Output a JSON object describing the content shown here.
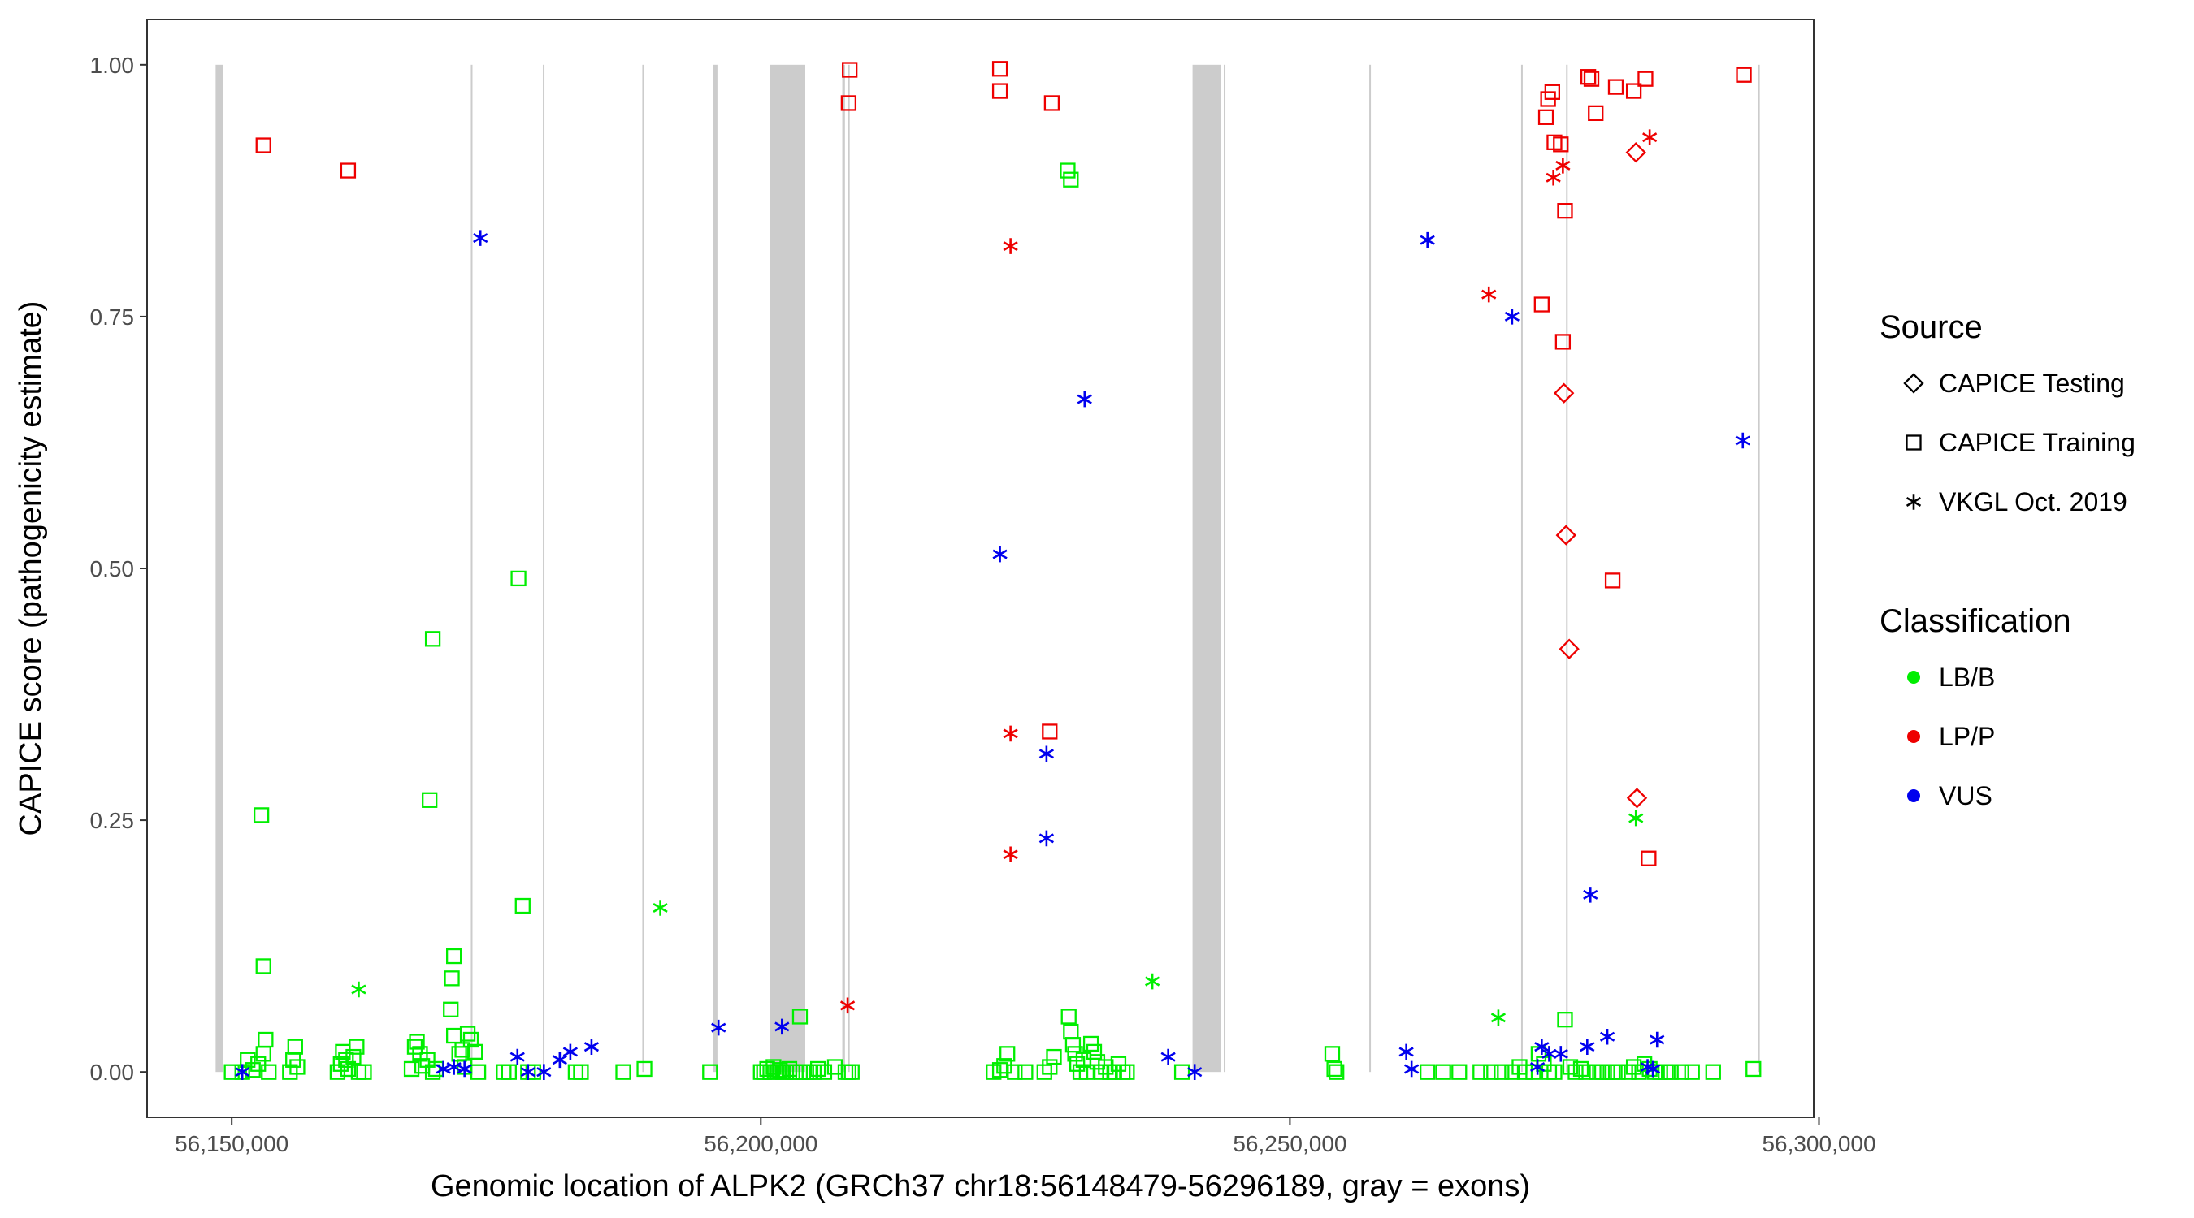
{
  "chart_data": {
    "type": "scatter",
    "title": "",
    "xlabel": "Genomic location of ALPK2 (GRCh37 chr18:56148479-56296189, gray = exons)",
    "ylabel": "CAPICE score (pathogenicity estimate)",
    "xlim": [
      56142000,
      56299500
    ],
    "ylim": [
      -0.045,
      1.045
    ],
    "x_ticks": [
      56150000,
      56200000,
      56250000,
      56300000
    ],
    "x_tick_labels": [
      "56,150,000",
      "56,200,000",
      "56,250,000",
      "56,300,000"
    ],
    "y_ticks": [
      0,
      0.25,
      0.5,
      0.75,
      1
    ],
    "y_tick_labels": [
      "0.00",
      "0.25",
      "0.50",
      "0.75",
      "1.00"
    ],
    "panel_background": "#ffffff",
    "panel_border": "#333333",
    "grid": false,
    "exons": [
      [
        56148479,
        56149150
      ],
      [
        56172600,
        56172700
      ],
      [
        56179400,
        56179550
      ],
      [
        56188800,
        56188950
      ],
      [
        56195450,
        56195900
      ],
      [
        56200900,
        56204200
      ],
      [
        56207700,
        56207950
      ],
      [
        56208200,
        56208400
      ],
      [
        56240800,
        56243500
      ],
      [
        56243750,
        56243900
      ],
      [
        56257500,
        56257650
      ],
      [
        56271850,
        56271950
      ],
      [
        56276100,
        56276250
      ],
      [
        56294250,
        56294400
      ]
    ],
    "exon_color": "#cccccc",
    "legend": {
      "source_title": "Source",
      "source_entries": [
        {
          "label": "CAPICE Testing",
          "shape": "diamond"
        },
        {
          "label": "CAPICE Training",
          "shape": "square"
        },
        {
          "label": "VKGL Oct. 2019",
          "shape": "asterisk"
        }
      ],
      "class_title": "Classification",
      "class_entries": [
        {
          "label": "LB/B",
          "color": "#00ee00"
        },
        {
          "label": "LP/P",
          "color": "#ee0000"
        },
        {
          "label": "VUS",
          "color": "#0000ee"
        }
      ]
    },
    "series": [
      {
        "source": "CAPICE Training",
        "classification": "LB/B",
        "shape": "square",
        "color": "#00ee00",
        "points": [
          [
            56150000,
            0
          ],
          [
            56151000,
            0
          ],
          [
            56151500,
            0.012
          ],
          [
            56152000,
            0.002
          ],
          [
            56152500,
            0.008
          ],
          [
            56153000,
            0.018
          ],
          [
            56153200,
            0.032
          ],
          [
            56153500,
            0
          ],
          [
            56152800,
            0.255
          ],
          [
            56153000,
            0.105
          ],
          [
            56155500,
            0
          ],
          [
            56155800,
            0.012
          ],
          [
            56156000,
            0.025
          ],
          [
            56156200,
            0.005
          ],
          [
            56160000,
            0
          ],
          [
            56160300,
            0.008
          ],
          [
            56160500,
            0.02
          ],
          [
            56160800,
            0.012
          ],
          [
            56161000,
            0.003
          ],
          [
            56161500,
            0.015
          ],
          [
            56162000,
            0
          ],
          [
            56161800,
            0.025
          ],
          [
            56162500,
            0
          ],
          [
            56167000,
            0.003
          ],
          [
            56167300,
            0.025
          ],
          [
            56167500,
            0.03
          ],
          [
            56167800,
            0.018
          ],
          [
            56168000,
            0.006
          ],
          [
            56168500,
            0.012
          ],
          [
            56169000,
            0
          ],
          [
            56169300,
            0.003
          ],
          [
            56168700,
            0.27
          ],
          [
            56169000,
            0.43
          ],
          [
            56171000,
            0.115
          ],
          [
            56170800,
            0.093
          ],
          [
            56170700,
            0.062
          ],
          [
            56171000,
            0.036
          ],
          [
            56171500,
            0.018
          ],
          [
            56171800,
            0.022
          ],
          [
            56172000,
            0.005
          ],
          [
            56172300,
            0.038
          ],
          [
            56172600,
            0.032
          ],
          [
            56173000,
            0.02
          ],
          [
            56173300,
            0
          ],
          [
            56175700,
            0
          ],
          [
            56176200,
            0
          ],
          [
            56177100,
            0.49
          ],
          [
            56177500,
            0.165
          ],
          [
            56178000,
            0
          ],
          [
            56178500,
            0
          ],
          [
            56182500,
            0
          ],
          [
            56183000,
            0
          ],
          [
            56187000,
            0
          ],
          [
            56189000,
            0.003
          ],
          [
            56195200,
            0
          ],
          [
            56200000,
            0
          ],
          [
            56200300,
            0
          ],
          [
            56200600,
            0.003
          ],
          [
            56200900,
            0
          ],
          [
            56201200,
            0.005
          ],
          [
            56201500,
            0
          ],
          [
            56201800,
            0.002
          ],
          [
            56202100,
            0
          ],
          [
            56202400,
            0
          ],
          [
            56202700,
            0.003
          ],
          [
            56203000,
            0
          ],
          [
            56203300,
            0
          ],
          [
            56203700,
            0.055
          ],
          [
            56204000,
            0
          ],
          [
            56204300,
            0
          ],
          [
            56204600,
            0
          ],
          [
            56205000,
            0
          ],
          [
            56205400,
            0.003
          ],
          [
            56206000,
            0
          ],
          [
            56207000,
            0.005
          ],
          [
            56208000,
            0
          ],
          [
            56208300,
            0
          ],
          [
            56208600,
            0
          ],
          [
            56222000,
            0
          ],
          [
            56222600,
            0.002
          ],
          [
            56223000,
            0.006
          ],
          [
            56223300,
            0.018
          ],
          [
            56224000,
            0
          ],
          [
            56225000,
            0
          ],
          [
            56226800,
            0
          ],
          [
            56227300,
            0.005
          ],
          [
            56227700,
            0.015
          ],
          [
            56229000,
            0.895
          ],
          [
            56229300,
            0.886
          ],
          [
            56229100,
            0.055
          ],
          [
            56229300,
            0.04
          ],
          [
            56229500,
            0.027
          ],
          [
            56229700,
            0.018
          ],
          [
            56229900,
            0.008
          ],
          [
            56230200,
            0
          ],
          [
            56230500,
            0.012
          ],
          [
            56230800,
            0
          ],
          [
            56231200,
            0.028
          ],
          [
            56231500,
            0.02
          ],
          [
            56231800,
            0.01
          ],
          [
            56232200,
            0
          ],
          [
            56232600,
            0.005
          ],
          [
            56233000,
            0
          ],
          [
            56233400,
            0
          ],
          [
            56233800,
            0.008
          ],
          [
            56234200,
            0
          ],
          [
            56234600,
            0
          ],
          [
            56239800,
            0
          ],
          [
            56254000,
            0.018
          ],
          [
            56254200,
            0.003
          ],
          [
            56254400,
            0
          ],
          [
            56263000,
            0
          ],
          [
            56264500,
            0
          ],
          [
            56266000,
            0
          ],
          [
            56268000,
            0
          ],
          [
            56269000,
            0
          ],
          [
            56270000,
            0
          ],
          [
            56271000,
            0
          ],
          [
            56271700,
            0.005
          ],
          [
            56272200,
            0
          ],
          [
            56273000,
            0
          ],
          [
            56273500,
            0.018
          ],
          [
            56274000,
            0.008
          ],
          [
            56274500,
            0
          ],
          [
            56275000,
            0
          ],
          [
            56276000,
            0.052
          ],
          [
            56276500,
            0.005
          ],
          [
            56277000,
            0
          ],
          [
            56277500,
            0.003
          ],
          [
            56278000,
            0
          ],
          [
            56279000,
            0
          ],
          [
            56279500,
            0
          ],
          [
            56280000,
            0
          ],
          [
            56280500,
            0
          ],
          [
            56281000,
            0
          ],
          [
            56282000,
            0
          ],
          [
            56282500,
            0.005
          ],
          [
            56283000,
            0
          ],
          [
            56283500,
            0.008
          ],
          [
            56284000,
            0.003
          ],
          [
            56284500,
            0
          ],
          [
            56285000,
            0
          ],
          [
            56285500,
            0
          ],
          [
            56286000,
            0
          ],
          [
            56287000,
            0
          ],
          [
            56288000,
            0
          ],
          [
            56290000,
            0
          ],
          [
            56293800,
            0.003
          ]
        ]
      },
      {
        "source": "CAPICE Training",
        "classification": "LP/P",
        "shape": "square",
        "color": "#ee0000",
        "points": [
          [
            56153000,
            0.92
          ],
          [
            56161000,
            0.895
          ],
          [
            56208400,
            0.995
          ],
          [
            56208300,
            0.962
          ],
          [
            56222600,
            0.996
          ],
          [
            56222600,
            0.974
          ],
          [
            56227500,
            0.962
          ],
          [
            56227300,
            0.338
          ],
          [
            56273800,
            0.762
          ],
          [
            56274200,
            0.948
          ],
          [
            56274400,
            0.966
          ],
          [
            56274800,
            0.973
          ],
          [
            56275000,
            0.923
          ],
          [
            56275600,
            0.921
          ],
          [
            56275800,
            0.725
          ],
          [
            56276000,
            0.855
          ],
          [
            56278200,
            0.988
          ],
          [
            56278500,
            0.986
          ],
          [
            56278900,
            0.952
          ],
          [
            56280800,
            0.978
          ],
          [
            56280500,
            0.488
          ],
          [
            56282500,
            0.974
          ],
          [
            56283600,
            0.986
          ],
          [
            56283900,
            0.212
          ],
          [
            56292900,
            0.99
          ]
        ]
      },
      {
        "source": "CAPICE Testing",
        "classification": "LP/P",
        "shape": "diamond",
        "color": "#ee0000",
        "points": [
          [
            56275900,
            0.674
          ],
          [
            56276100,
            0.533
          ],
          [
            56276400,
            0.42
          ],
          [
            56282700,
            0.913
          ],
          [
            56282800,
            0.272
          ]
        ]
      },
      {
        "source": "VKGL Oct. 2019",
        "classification": "LB/B",
        "shape": "asterisk",
        "color": "#00ee00",
        "points": [
          [
            56162000,
            0.082
          ],
          [
            56190500,
            0.163
          ],
          [
            56237000,
            0.09
          ],
          [
            56269700,
            0.054
          ],
          [
            56282700,
            0.252
          ]
        ]
      },
      {
        "source": "VKGL Oct. 2019",
        "classification": "LP/P",
        "shape": "asterisk",
        "color": "#ee0000",
        "points": [
          [
            56208200,
            0.066
          ],
          [
            56223600,
            0.82
          ],
          [
            56223600,
            0.336
          ],
          [
            56223600,
            0.216
          ],
          [
            56268800,
            0.772
          ],
          [
            56274900,
            0.888
          ],
          [
            56275800,
            0.9
          ],
          [
            56284000,
            0.928
          ]
        ]
      },
      {
        "source": "VKGL Oct. 2019",
        "classification": "VUS",
        "shape": "asterisk",
        "color": "#0000ee",
        "points": [
          [
            56151000,
            0
          ],
          [
            56170000,
            0.003
          ],
          [
            56171000,
            0.005
          ],
          [
            56172000,
            0.003
          ],
          [
            56173500,
            0.828
          ],
          [
            56177000,
            0.015
          ],
          [
            56178000,
            0
          ],
          [
            56179500,
            0
          ],
          [
            56181000,
            0.012
          ],
          [
            56182000,
            0.02
          ],
          [
            56184000,
            0.025
          ],
          [
            56196000,
            0.044
          ],
          [
            56202000,
            0.045
          ],
          [
            56222600,
            0.514
          ],
          [
            56227000,
            0.316
          ],
          [
            56227000,
            0.232
          ],
          [
            56230600,
            0.668
          ],
          [
            56238500,
            0.015
          ],
          [
            56241000,
            0
          ],
          [
            56261000,
            0.02
          ],
          [
            56261500,
            0.003
          ],
          [
            56263000,
            0.826
          ],
          [
            56271000,
            0.75
          ],
          [
            56273400,
            0.005
          ],
          [
            56273800,
            0.025
          ],
          [
            56274500,
            0.018
          ],
          [
            56275600,
            0.018
          ],
          [
            56278400,
            0.176
          ],
          [
            56278100,
            0.025
          ],
          [
            56280000,
            0.035
          ],
          [
            56283800,
            0.005
          ],
          [
            56284300,
            0.003
          ],
          [
            56284700,
            0.032
          ],
          [
            56292800,
            0.627
          ]
        ]
      }
    ]
  }
}
